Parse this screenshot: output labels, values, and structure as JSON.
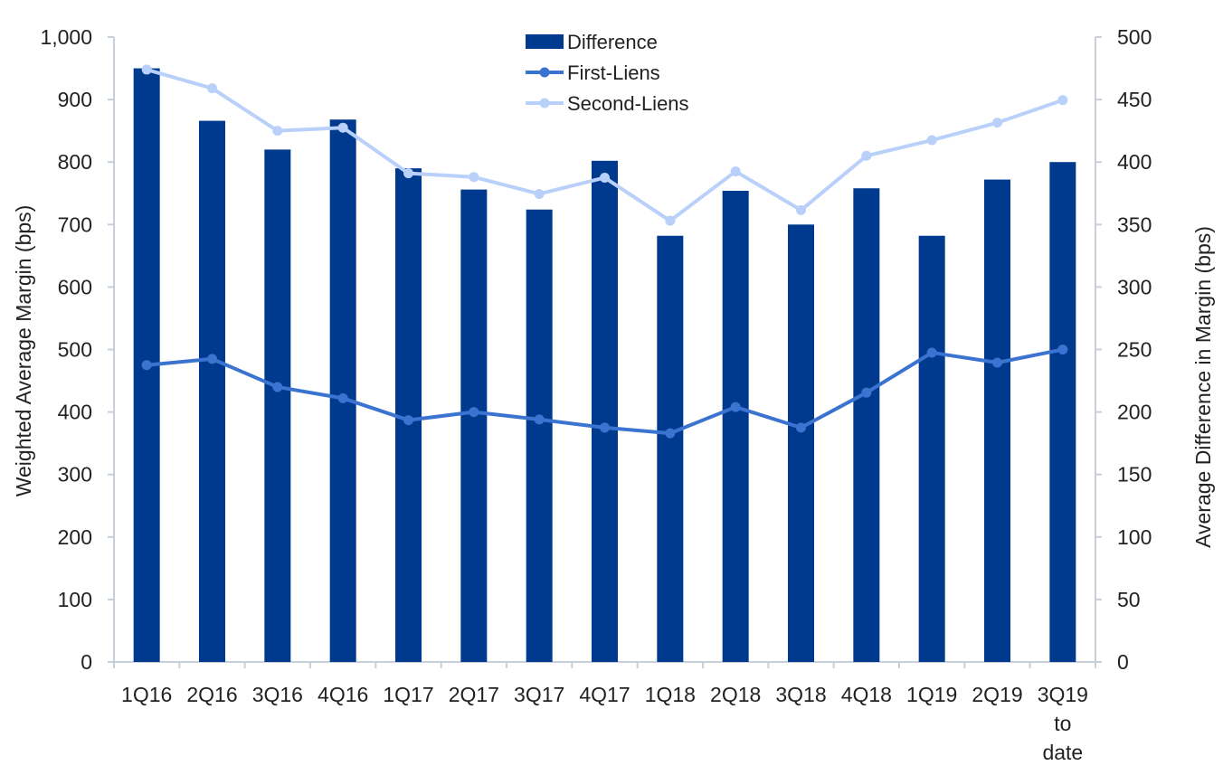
{
  "chart_data": {
    "type": "bar",
    "categories": [
      "1Q16",
      "2Q16",
      "3Q16",
      "4Q16",
      "1Q17",
      "2Q17",
      "3Q17",
      "4Q17",
      "1Q18",
      "2Q18",
      "3Q18",
      "4Q18",
      "1Q19",
      "2Q19",
      "3Q19 to date"
    ],
    "category_lines": [
      [
        "1Q16"
      ],
      [
        "2Q16"
      ],
      [
        "3Q16"
      ],
      [
        "4Q16"
      ],
      [
        "1Q17"
      ],
      [
        "2Q17"
      ],
      [
        "3Q17"
      ],
      [
        "4Q17"
      ],
      [
        "1Q18"
      ],
      [
        "2Q18"
      ],
      [
        "3Q18"
      ],
      [
        "4Q18"
      ],
      [
        "1Q19"
      ],
      [
        "2Q19"
      ],
      [
        "3Q19",
        "to",
        "date"
      ]
    ],
    "series": [
      {
        "name": "Difference",
        "kind": "bar",
        "axis": "right",
        "color": "#003A8F",
        "values": [
          475,
          433,
          410,
          434,
          395,
          378,
          362,
          401,
          341,
          377,
          350,
          379,
          341,
          386,
          400
        ]
      },
      {
        "name": "First-Liens",
        "kind": "line",
        "axis": "left",
        "color": "#3B73D0",
        "values": [
          475,
          485,
          440,
          422,
          387,
          400,
          388,
          375,
          366,
          408,
          375,
          431,
          495,
          479,
          500
        ]
      },
      {
        "name": "Second-Liens",
        "kind": "line",
        "axis": "left",
        "color": "#B8D0FA",
        "values": [
          948,
          918,
          850,
          855,
          782,
          776,
          749,
          775,
          706,
          785,
          723,
          810,
          835,
          863,
          899
        ]
      }
    ],
    "ylabel": "Weighted Average Margin (bps)",
    "ylabel_right": "Average Difference in Margin (bps)",
    "ylim": [
      0,
      1000
    ],
    "ylim_right": [
      0,
      500
    ],
    "yticks": [
      "0",
      "100",
      "200",
      "300",
      "400",
      "500",
      "600",
      "700",
      "800",
      "900",
      "1,000"
    ],
    "yticks_right": [
      "0",
      "50",
      "100",
      "150",
      "200",
      "250",
      "300",
      "350",
      "400",
      "450",
      "500"
    ],
    "legend_position": "top-center",
    "grid": false
  }
}
